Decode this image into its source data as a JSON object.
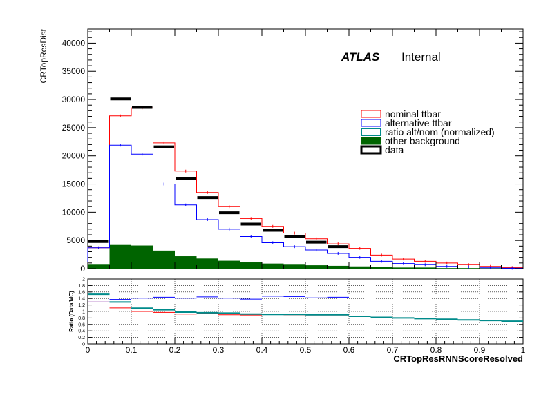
{
  "chart_data": [
    {
      "type": "histogram",
      "panel": "main",
      "ylabel": "CRTopResDist",
      "xlim": [
        0,
        1
      ],
      "ylim": [
        0,
        42500
      ],
      "yticks": [
        "0",
        "5000",
        "10000",
        "15000",
        "20000",
        "25000",
        "30000",
        "35000",
        "40000"
      ],
      "ytick_values": [
        0,
        5000,
        10000,
        15000,
        20000,
        25000,
        30000,
        35000,
        40000
      ],
      "bin_edges": [
        0,
        0.05,
        0.1,
        0.15,
        0.2,
        0.25,
        0.3,
        0.35,
        0.4,
        0.45,
        0.5,
        0.55,
        0.6,
        0.65,
        0.7,
        0.75,
        0.8,
        0.85,
        0.9,
        0.95,
        1.0
      ],
      "label_main": "ATLAS",
      "label_sub": "Internal",
      "legend_position": "upper-right",
      "series": [
        {
          "name": "nominal ttbar",
          "style": "line",
          "color": "#ff0000",
          "values": [
            3700,
            27100,
            28500,
            22300,
            17300,
            13500,
            11000,
            8900,
            7500,
            6300,
            5300,
            4400,
            3600,
            2400,
            1700,
            1300,
            1000,
            700,
            400,
            200
          ]
        },
        {
          "name": "alternative ttbar",
          "style": "line",
          "color": "#0000ff",
          "values": [
            3700,
            21900,
            20300,
            15000,
            11300,
            8700,
            7000,
            5700,
            4600,
            3900,
            3300,
            2700,
            2000,
            1300,
            900,
            700,
            400,
            300,
            150,
            80
          ]
        },
        {
          "name": "ratio alt/nom (normalized)",
          "style": "line",
          "color": "#008b8b",
          "values": []
        },
        {
          "name": "other background",
          "style": "fill",
          "color": "#006400",
          "values": [
            700,
            4200,
            4100,
            3200,
            2200,
            1800,
            1400,
            1100,
            900,
            700,
            600,
            500,
            400,
            300,
            200,
            200,
            100,
            100,
            50,
            20
          ]
        },
        {
          "name": "data",
          "style": "marker",
          "color": "#000000",
          "values": [
            4800,
            30100,
            28600,
            21600,
            16000,
            12600,
            9900,
            7900,
            6800,
            5700,
            4700,
            3900,
            null,
            null,
            null,
            null,
            null,
            null,
            null,
            null
          ]
        }
      ]
    },
    {
      "type": "histogram",
      "panel": "ratio",
      "xlabel": "CRTopResRNNScoreResolved",
      "ylabel": "Ratio (Data/MC)",
      "xlim": [
        0,
        1
      ],
      "ylim": [
        0,
        2
      ],
      "grid": true,
      "xticks": [
        "0",
        "0.1",
        "0.2",
        "0.3",
        "0.4",
        "0.5",
        "0.6",
        "0.7",
        "0.8",
        "0.9",
        "1"
      ],
      "xtick_values": [
        0,
        0.1,
        0.2,
        0.3,
        0.4,
        0.5,
        0.6,
        0.7,
        0.8,
        0.9,
        1.0
      ],
      "yticks": [
        "0",
        "0.2",
        "0.4",
        "0.6",
        "0.8",
        "1",
        "1.2",
        "1.4",
        "1.6",
        "1.8",
        "2"
      ],
      "ytick_values": [
        0,
        0.2,
        0.4,
        0.6,
        0.8,
        1.0,
        1.2,
        1.4,
        1.6,
        1.8,
        2.0
      ],
      "bin_edges": [
        0,
        0.05,
        0.1,
        0.15,
        0.2,
        0.25,
        0.3,
        0.35,
        0.4,
        0.45,
        0.5,
        0.55,
        0.6,
        0.65,
        0.7,
        0.75,
        0.8,
        0.85,
        0.9,
        0.95,
        1.0
      ],
      "series": [
        {
          "name": "nominal ttbar",
          "color": "#ff0000",
          "values": [
            1.29,
            1.11,
            1.0,
            0.97,
            0.92,
            0.94,
            0.9,
            0.89,
            0.91,
            0.9,
            0.89,
            0.89,
            null,
            null,
            null,
            null,
            null,
            null,
            null,
            null
          ]
        },
        {
          "name": "alternative ttbar",
          "color": "#0000ff",
          "values": [
            1.29,
            1.37,
            1.41,
            1.44,
            1.41,
            1.45,
            1.41,
            1.38,
            1.47,
            1.46,
            1.42,
            1.44,
            null,
            null,
            null,
            null,
            null,
            null,
            null,
            null
          ]
        },
        {
          "name": "ratio alt/nom (normalized)",
          "color": "#008b8b",
          "values": [
            1.53,
            1.29,
            1.1,
            1.05,
            0.98,
            0.96,
            0.95,
            0.92,
            0.91,
            0.91,
            0.9,
            0.9,
            0.85,
            0.82,
            0.8,
            0.78,
            0.76,
            0.74,
            0.72,
            0.7
          ]
        }
      ]
    }
  ]
}
